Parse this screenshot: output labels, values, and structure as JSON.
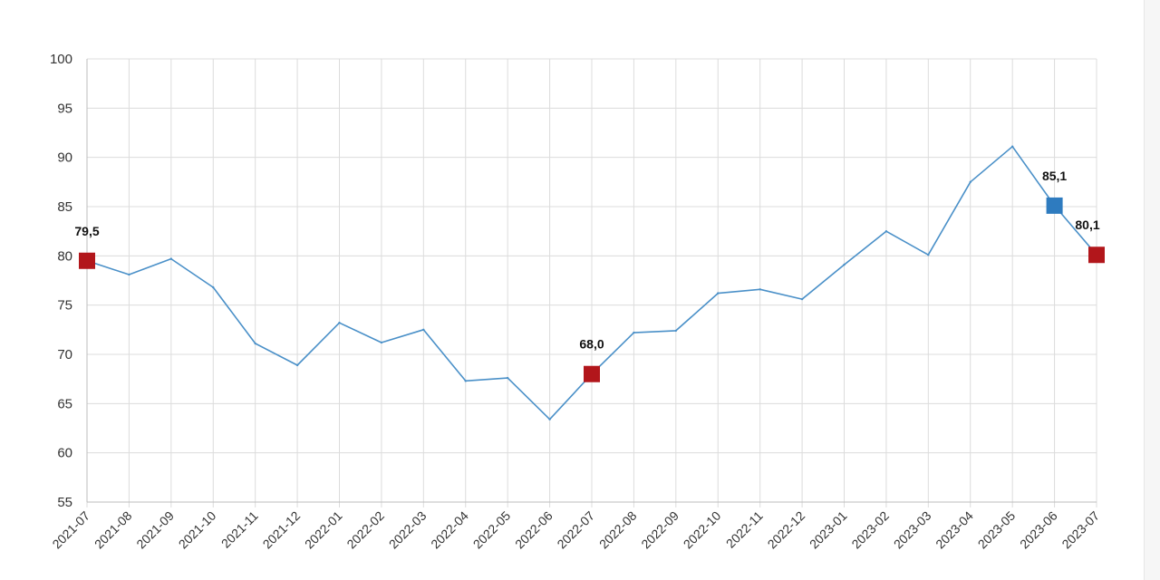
{
  "chart_data": {
    "type": "line",
    "title": "",
    "xlabel": "",
    "ylabel": "",
    "ylim": [
      55,
      100
    ],
    "yticks": [
      "100",
      "95",
      "90",
      "85",
      "80",
      "75",
      "70",
      "65",
      "60",
      "55"
    ],
    "grid": true,
    "categories": [
      "2021-07",
      "2021-08",
      "2021-09",
      "2021-10",
      "2021-11",
      "2021-12",
      "2022-01",
      "2022-02",
      "2022-03",
      "2022-04",
      "2022-05",
      "2022-06",
      "2022-07",
      "2022-08",
      "2022-09",
      "2022-10",
      "2022-11",
      "2022-12",
      "2023-01",
      "2023-02",
      "2023-03",
      "2023-04",
      "2023-05",
      "2023-06",
      "2023-07"
    ],
    "series": [
      {
        "color": "#4a90c8",
        "values": [
          79.5,
          78.1,
          79.7,
          76.8,
          71.1,
          68.9,
          73.2,
          71.2,
          72.5,
          67.3,
          67.6,
          63.4,
          68.0,
          72.2,
          72.4,
          76.2,
          76.6,
          75.6,
          79.1,
          82.5,
          80.1,
          87.5,
          91.1,
          85.1,
          80.1
        ]
      }
    ],
    "markers": [
      {
        "category": "2021-07",
        "value": 79.5,
        "label": "79,5",
        "color": "#b2161b",
        "label_side": "above"
      },
      {
        "category": "2022-07",
        "value": 68.0,
        "label": "68,0",
        "color": "#b2161b",
        "label_side": "above"
      },
      {
        "category": "2023-06",
        "value": 85.1,
        "label": "85,1",
        "color": "#2e7bbf",
        "label_side": "above"
      },
      {
        "category": "2023-07",
        "value": 80.1,
        "label": "80,1",
        "color": "#b2161b",
        "label_side": "above-left"
      }
    ]
  }
}
